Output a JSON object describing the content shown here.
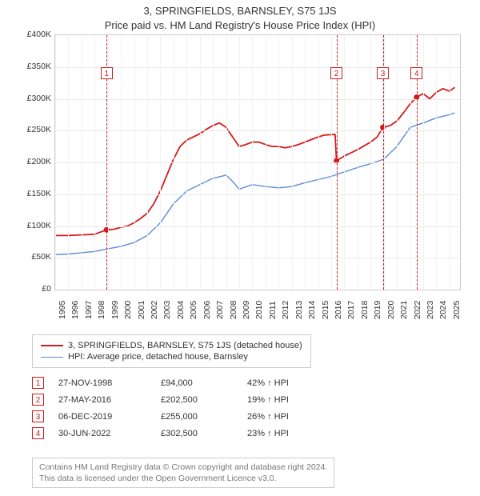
{
  "title": "3, SPRINGFIELDS, BARNSLEY, S75 1JS",
  "subtitle": "Price paid vs. HM Land Registry's House Price Index (HPI)",
  "chart": {
    "type": "line",
    "background_color": "#ffffff",
    "grid_color": "#e9e9e9",
    "vgrid_color": "#f2f2f2",
    "border_color": "#cccccc",
    "x": {
      "min": 1995,
      "max": 2025.8,
      "ticks": [
        1995,
        1996,
        1997,
        1998,
        1999,
        2000,
        2001,
        2002,
        2003,
        2004,
        2005,
        2006,
        2007,
        2008,
        2009,
        2010,
        2011,
        2012,
        2013,
        2014,
        2015,
        2016,
        2017,
        2018,
        2019,
        2020,
        2021,
        2022,
        2023,
        2024,
        2025
      ],
      "label_fontsize": 10.5,
      "label_rotation_deg": -90
    },
    "y": {
      "min": 0,
      "max": 400000,
      "tick_step": 50000,
      "ticks": [
        0,
        50000,
        100000,
        150000,
        200000,
        250000,
        300000,
        350000,
        400000
      ],
      "tick_labels": [
        "£0",
        "£50K",
        "£100K",
        "£150K",
        "£200K",
        "£250K",
        "£300K",
        "£350K",
        "£400K"
      ],
      "currency_prefix": "£",
      "label_fontsize": 10.5
    },
    "series": [
      {
        "name": "3, SPRINGFIELDS, BARNSLEY, S75 1JS (detached house)",
        "color": "#d41b1b",
        "line_width": 1.8,
        "data": [
          [
            1995.0,
            85000
          ],
          [
            1996.0,
            85000
          ],
          [
            1997.0,
            86000
          ],
          [
            1998.0,
            87000
          ],
          [
            1998.9,
            94000
          ],
          [
            1999.5,
            95000
          ],
          [
            2000.0,
            98000
          ],
          [
            2000.5,
            100000
          ],
          [
            2001.0,
            105000
          ],
          [
            2001.5,
            112000
          ],
          [
            2002.0,
            120000
          ],
          [
            2002.5,
            135000
          ],
          [
            2003.0,
            155000
          ],
          [
            2003.5,
            180000
          ],
          [
            2004.0,
            205000
          ],
          [
            2004.5,
            225000
          ],
          [
            2005.0,
            235000
          ],
          [
            2005.5,
            240000
          ],
          [
            2006.0,
            245000
          ],
          [
            2006.5,
            252000
          ],
          [
            2007.0,
            258000
          ],
          [
            2007.5,
            262000
          ],
          [
            2008.0,
            255000
          ],
          [
            2008.5,
            240000
          ],
          [
            2009.0,
            225000
          ],
          [
            2009.5,
            228000
          ],
          [
            2010.0,
            232000
          ],
          [
            2010.5,
            232000
          ],
          [
            2011.0,
            228000
          ],
          [
            2011.5,
            225000
          ],
          [
            2012.0,
            225000
          ],
          [
            2012.5,
            223000
          ],
          [
            2013.0,
            225000
          ],
          [
            2013.5,
            228000
          ],
          [
            2014.0,
            232000
          ],
          [
            2014.5,
            236000
          ],
          [
            2015.0,
            240000
          ],
          [
            2015.5,
            243000
          ],
          [
            2016.3,
            244000
          ],
          [
            2016.4,
            202500
          ],
          [
            2017.0,
            210000
          ],
          [
            2017.5,
            215000
          ],
          [
            2018.0,
            220000
          ],
          [
            2018.5,
            226000
          ],
          [
            2019.0,
            232000
          ],
          [
            2019.5,
            240000
          ],
          [
            2019.93,
            255000
          ],
          [
            2020.5,
            258000
          ],
          [
            2021.0,
            265000
          ],
          [
            2021.5,
            278000
          ],
          [
            2022.0,
            292000
          ],
          [
            2022.5,
            302500
          ],
          [
            2023.0,
            308000
          ],
          [
            2023.5,
            300000
          ],
          [
            2024.0,
            310000
          ],
          [
            2024.5,
            316000
          ],
          [
            2025.0,
            312000
          ],
          [
            2025.4,
            318000
          ]
        ]
      },
      {
        "name": "HPI: Average price, detached house, Barnsley",
        "color": "#5a8dd6",
        "line_width": 1.4,
        "data": [
          [
            1995.0,
            55000
          ],
          [
            1996.0,
            56000
          ],
          [
            1997.0,
            58000
          ],
          [
            1998.0,
            60000
          ],
          [
            1999.0,
            64000
          ],
          [
            2000.0,
            68000
          ],
          [
            2001.0,
            74000
          ],
          [
            2002.0,
            85000
          ],
          [
            2003.0,
            105000
          ],
          [
            2004.0,
            135000
          ],
          [
            2005.0,
            155000
          ],
          [
            2006.0,
            165000
          ],
          [
            2007.0,
            175000
          ],
          [
            2008.0,
            180000
          ],
          [
            2008.5,
            170000
          ],
          [
            2009.0,
            158000
          ],
          [
            2010.0,
            165000
          ],
          [
            2011.0,
            162000
          ],
          [
            2012.0,
            160000
          ],
          [
            2013.0,
            162000
          ],
          [
            2014.0,
            168000
          ],
          [
            2015.0,
            173000
          ],
          [
            2016.0,
            178000
          ],
          [
            2017.0,
            185000
          ],
          [
            2018.0,
            192000
          ],
          [
            2019.0,
            198000
          ],
          [
            2020.0,
            205000
          ],
          [
            2021.0,
            225000
          ],
          [
            2022.0,
            255000
          ],
          [
            2023.0,
            262000
          ],
          [
            2024.0,
            270000
          ],
          [
            2025.0,
            275000
          ],
          [
            2025.4,
            278000
          ]
        ]
      }
    ],
    "transaction_markers": {
      "dash_color": "#d41b1b",
      "box_border": "#d41b1b",
      "box_bg": "#ffffff",
      "box_size": 15,
      "point_radius": 3.5,
      "items": [
        {
          "n": "1",
          "year": 1998.91,
          "price": 94000,
          "label_y": 340000
        },
        {
          "n": "2",
          "year": 2016.4,
          "price": 202500,
          "label_y": 340000
        },
        {
          "n": "3",
          "year": 2019.93,
          "price": 255000,
          "label_y": 340000
        },
        {
          "n": "4",
          "year": 2022.5,
          "price": 302500,
          "label_y": 340000
        }
      ]
    }
  },
  "legend": {
    "border_color": "#cccccc",
    "fontsize": 11,
    "rows": [
      {
        "color": "#d41b1b",
        "width": 2.0,
        "label": "3, SPRINGFIELDS, BARNSLEY, S75 1JS (detached house)"
      },
      {
        "color": "#5a8dd6",
        "width": 1.4,
        "label": "HPI: Average price, detached house, Barnsley"
      }
    ]
  },
  "transactions_table": {
    "fontsize": 11,
    "rows": [
      {
        "n": "1",
        "date": "27-NOV-1998",
        "price": "£94,000",
        "hpi": "42% ↑ HPI"
      },
      {
        "n": "2",
        "date": "27-MAY-2016",
        "price": "£202,500",
        "hpi": "19% ↑ HPI"
      },
      {
        "n": "3",
        "date": "06-DEC-2019",
        "price": "£255,000",
        "hpi": "26% ↑ HPI"
      },
      {
        "n": "4",
        "date": "30-JUN-2022",
        "price": "£302,500",
        "hpi": "23% ↑ HPI"
      }
    ]
  },
  "footer": {
    "line1": "Contains HM Land Registry data © Crown copyright and database right 2024.",
    "line2": "This data is licensed under the Open Government Licence v3.0.",
    "color": "#777777",
    "fontsize": 10.5,
    "border_color": "#cccccc"
  }
}
